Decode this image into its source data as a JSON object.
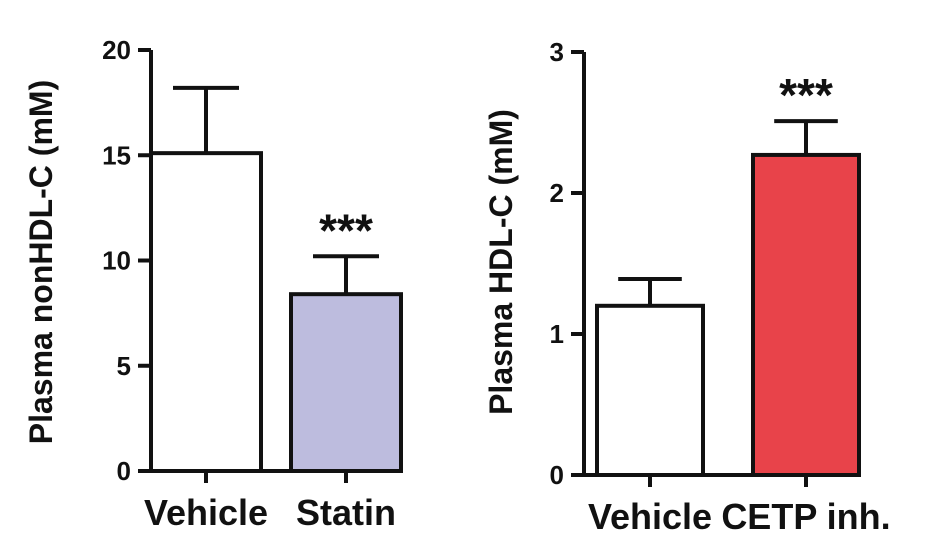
{
  "colors": {
    "ink": "#111111",
    "vehicle_fill": "#ffffff",
    "statin_fill": "#bdbcde",
    "cetp_fill": "#e8434a"
  },
  "chart_data": [
    {
      "type": "bar",
      "ylabel": "Plasma nonHDL-C (mM)",
      "xlabel": "",
      "ylim": [
        0,
        20
      ],
      "yticks": [
        0,
        5,
        10,
        15,
        20
      ],
      "categories": [
        "Vehicle",
        "Statin"
      ],
      "values": [
        15.1,
        8.4
      ],
      "error_upper": [
        3.1,
        1.8
      ],
      "significance": [
        "",
        "***"
      ],
      "bar_colors": [
        "#ffffff",
        "#bdbcde"
      ],
      "grid": false
    },
    {
      "type": "bar",
      "ylabel": "Plasma HDL-C (mM)",
      "xlabel": "",
      "ylim": [
        0,
        3
      ],
      "yticks": [
        0,
        1,
        2,
        3
      ],
      "categories": [
        "Vehicle",
        "CETP inh."
      ],
      "values": [
        1.2,
        2.27
      ],
      "error_upper": [
        0.19,
        0.24
      ],
      "significance": [
        "",
        "***"
      ],
      "bar_colors": [
        "#ffffff",
        "#e8434a"
      ],
      "grid": false
    }
  ]
}
